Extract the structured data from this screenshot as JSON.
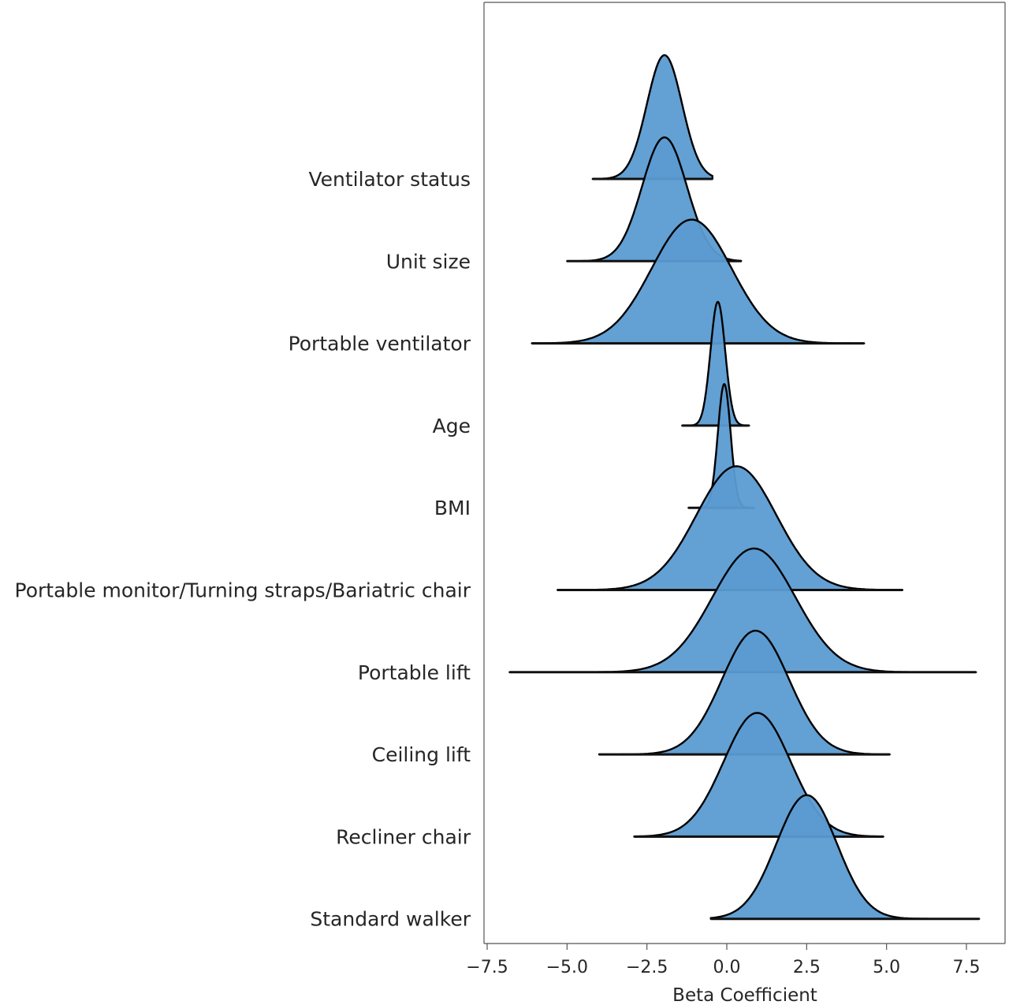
{
  "chart_data": {
    "type": "ridgeline",
    "xlabel": "Beta Coefficient",
    "xlim": [
      -7.5,
      8.0
    ],
    "xticks": [
      -7.5,
      -5.0,
      -2.5,
      0.0,
      2.5,
      5.0,
      7.5
    ],
    "xtick_labels": [
      "−7.5",
      "−5.0",
      "−2.5",
      "0.0",
      "2.5",
      "5.0",
      "7.5"
    ],
    "fill_color": "#5b9bd1",
    "edge_color": "#000000",
    "series": [
      {
        "name": "Ventilator status",
        "mean": -1.95,
        "sd": 0.55,
        "range": [
          -4.2,
          -0.45
        ]
      },
      {
        "name": "Unit size",
        "mean": -1.95,
        "sd": 0.7,
        "range": [
          -5.0,
          0.45
        ]
      },
      {
        "name": "Portable ventilator",
        "mean": -1.1,
        "sd": 1.25,
        "range": [
          -6.1,
          4.3
        ]
      },
      {
        "name": "Age",
        "mean": -0.28,
        "sd": 0.23,
        "range": [
          -1.4,
          0.7
        ]
      },
      {
        "name": "BMI",
        "mean": -0.08,
        "sd": 0.2,
        "range": [
          -1.2,
          0.85
        ]
      },
      {
        "name": "Portable monitor/Turning straps/Bariatric chair",
        "mean": 0.3,
        "sd": 1.25,
        "range": [
          -5.3,
          5.5
        ]
      },
      {
        "name": "Portable lift",
        "mean": 0.85,
        "sd": 1.3,
        "range": [
          -6.8,
          7.8
        ]
      },
      {
        "name": "Ceiling lift",
        "mean": 0.9,
        "sd": 1.05,
        "range": [
          -4.0,
          5.1
        ]
      },
      {
        "name": "Recliner chair",
        "mean": 0.95,
        "sd": 1.05,
        "range": [
          -2.9,
          4.9
        ]
      },
      {
        "name": "Standard walker",
        "mean": 2.5,
        "sd": 0.95,
        "range": [
          -0.5,
          7.9
        ]
      }
    ]
  }
}
